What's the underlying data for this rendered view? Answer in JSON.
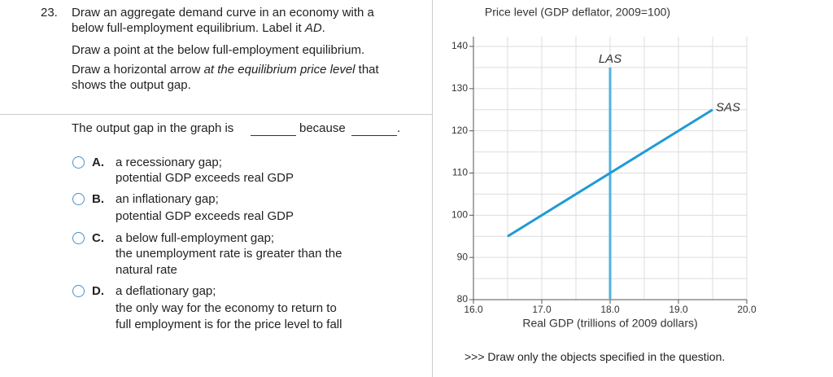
{
  "question": {
    "number": "23.",
    "paragraphs": [
      [
        [
          {
            "text": "Draw an aggregate demand curve in an economy with a"
          }
        ],
        [
          {
            "text": "below full-employment equilibrium. Label it "
          },
          {
            "text": "AD",
            "italic": true
          },
          {
            "text": "."
          }
        ]
      ],
      [
        [
          {
            "text": "Draw a point at the below full-employment equilibrium."
          }
        ]
      ],
      [
        [
          {
            "text": "Draw a horizontal arrow "
          },
          {
            "text": "at the equilibrium price level",
            "italic": true
          },
          {
            "text": " that"
          }
        ],
        [
          {
            "text": "shows the output gap."
          }
        ]
      ]
    ],
    "prompt": [
      "The output gap in the graph is",
      "because",
      "."
    ],
    "options": [
      {
        "letter": "A.",
        "lines": [
          "a recessionary gap;",
          "potential GDP exceeds real GDP"
        ]
      },
      {
        "letter": "B.",
        "lines": [
          "an inflationary gap;",
          "potential GDP exceeds real GDP"
        ]
      },
      {
        "letter": "C.",
        "lines": [
          "a below full-employment gap;",
          "the unemployment rate is greater than the",
          "natural rate"
        ]
      },
      {
        "letter": "D.",
        "lines": [
          "a deflationary gap;",
          "the only way for the economy to return to",
          "full employment is for the price level to fall"
        ]
      }
    ]
  },
  "chart_data": {
    "type": "line",
    "title": "Price level (GDP deflator, 2009=100)",
    "x_label": "Real GDP (trillions of 2009 dollars)",
    "xlim": [
      16,
      20
    ],
    "xticks": [
      {
        "value": 16,
        "label": "16.0"
      },
      {
        "value": 17,
        "label": "17.0"
      },
      {
        "value": 18,
        "label": "18.0"
      },
      {
        "value": 19,
        "label": "19.0"
      },
      {
        "value": 20,
        "label": "20.0"
      }
    ],
    "ylim": [
      80,
      140
    ],
    "yticks": [
      80,
      90,
      100,
      110,
      120,
      130,
      140
    ],
    "grid": true,
    "series": [
      {
        "name": "LAS",
        "color": "#4fb3e0",
        "x": [
          18,
          18
        ],
        "values": [
          80,
          135
        ]
      },
      {
        "name": "SAS",
        "color": "#1f9ad6",
        "x": [
          16.5,
          19.5
        ],
        "values": [
          95,
          125
        ]
      }
    ]
  },
  "footer": ">>> Draw only the objects specified in the question."
}
